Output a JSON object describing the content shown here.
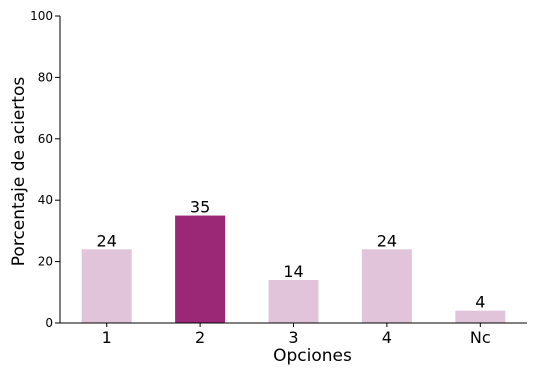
{
  "chart_data": {
    "type": "bar",
    "categories": [
      "1",
      "2",
      "3",
      "4",
      "Nc"
    ],
    "values": [
      24,
      35,
      14,
      24,
      4
    ],
    "data_labels": [
      "24",
      "35",
      "14",
      "24",
      "4"
    ],
    "colors": [
      "#e1c4da",
      "#9b2876",
      "#e1c4da",
      "#e1c4da",
      "#e1c4da"
    ],
    "xlabel": "Opciones",
    "ylabel": "Porcentaje de aciertos",
    "ylim": [
      0,
      100
    ],
    "yticks": [
      "0",
      "20",
      "40",
      "60",
      "80",
      "100"
    ],
    "grid": false
  }
}
